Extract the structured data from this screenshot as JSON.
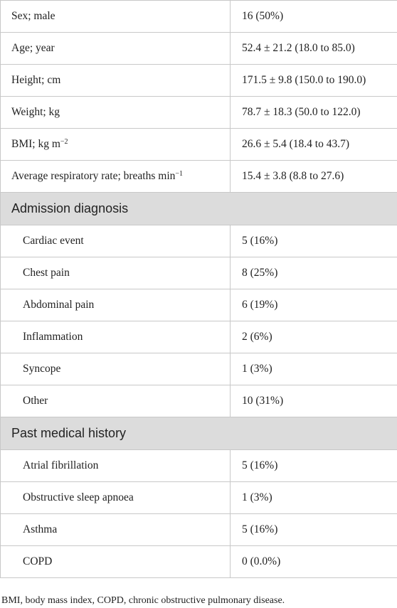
{
  "demographics": [
    {
      "label": "Sex; male",
      "value": "16 (50%)"
    },
    {
      "label": "Age; year",
      "value": "52.4 ± 21.2 (18.0 to 85.0)"
    },
    {
      "label": "Height; cm",
      "value": "171.5 ± 9.8 (150.0 to 190.0)"
    },
    {
      "label": "Weight; kg",
      "value": "78.7 ± 18.3 (50.0 to 122.0)"
    },
    {
      "label": "BMI; kg m",
      "label_sup": "−2",
      "value": "26.6 ± 5.4 (18.4 to 43.7)"
    },
    {
      "label": "Average respiratory rate; breaths min",
      "label_sup": "−1",
      "value": "15.4 ± 3.8 (8.8 to 27.6)"
    }
  ],
  "admission": {
    "heading": "Admission diagnosis",
    "rows": [
      {
        "label": "Cardiac event",
        "value": "5 (16%)"
      },
      {
        "label": "Chest pain",
        "value": "8 (25%)"
      },
      {
        "label": "Abdominal pain",
        "value": "6 (19%)"
      },
      {
        "label": "Inflammation",
        "value": "2 (6%)"
      },
      {
        "label": "Syncope",
        "value": "1 (3%)"
      },
      {
        "label": "Other",
        "value": "10 (31%)"
      }
    ]
  },
  "history": {
    "heading": "Past medical history",
    "rows": [
      {
        "label": "Atrial fibrillation",
        "value": "5 (16%)"
      },
      {
        "label": "Obstructive sleep apnoea",
        "value": "1 (3%)"
      },
      {
        "label": "Asthma",
        "value": "5 (16%)"
      },
      {
        "label": "COPD",
        "value": "0 (0.0%)"
      }
    ]
  },
  "footnote": "BMI, body mass index, COPD, chronic obstructive pulmonary disease.",
  "colors": {
    "section_background": "#dcdcdc",
    "border": "#c8c8c8",
    "text": "#222222"
  }
}
